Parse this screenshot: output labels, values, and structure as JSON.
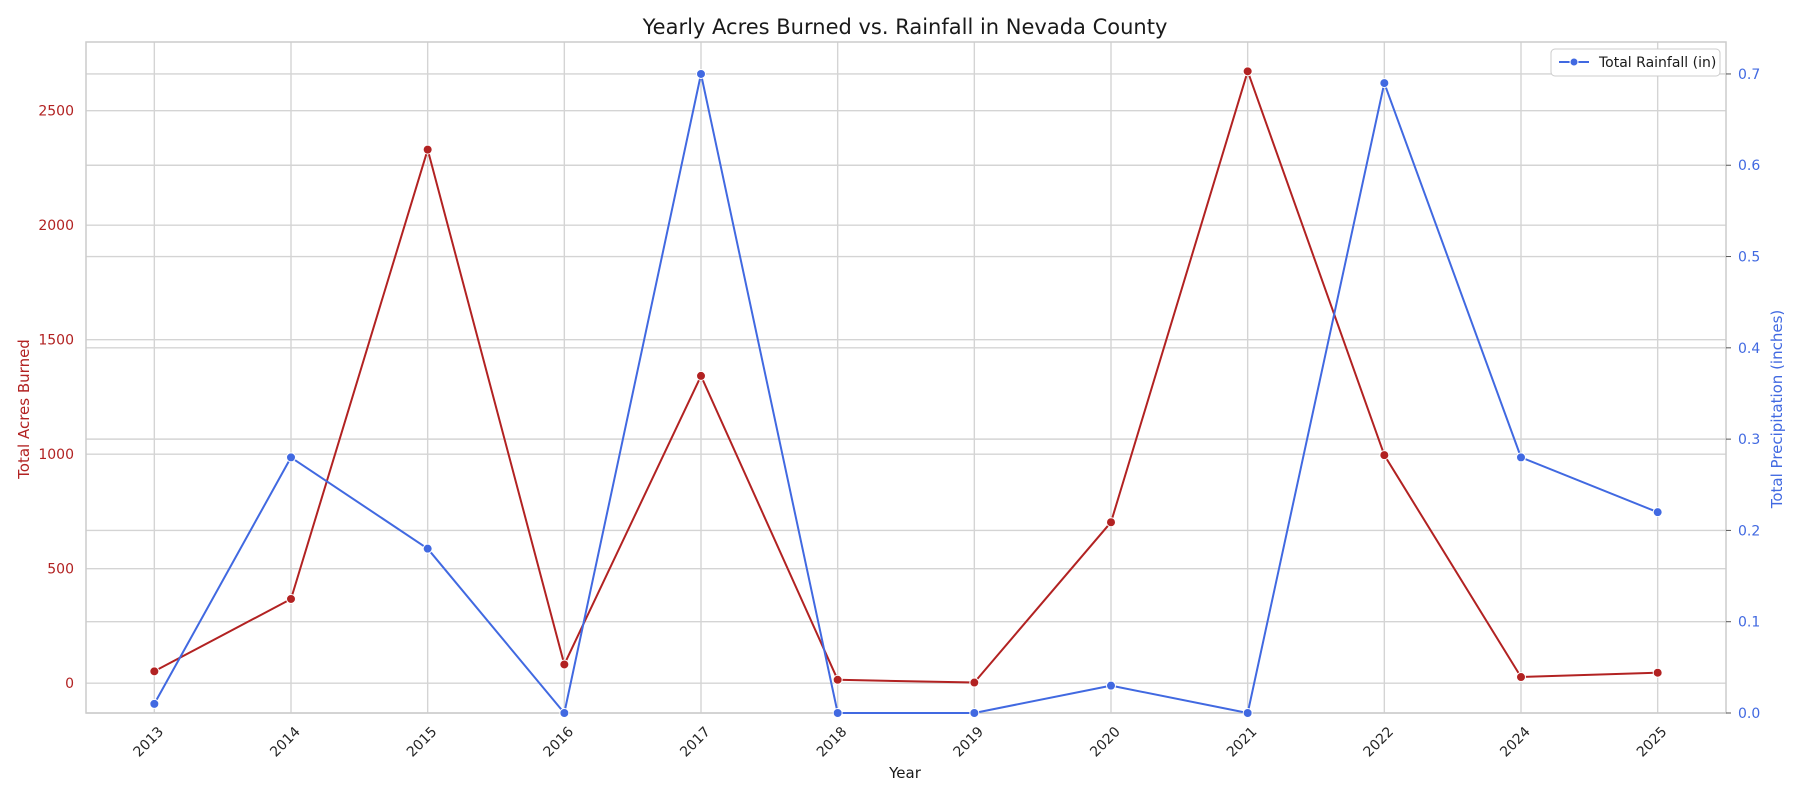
{
  "chart_data": {
    "type": "line",
    "title": "Yearly Acres Burned vs. Rainfall in Nevada County",
    "xlabel": "Year",
    "categories": [
      "2013",
      "2014",
      "2015",
      "2016",
      "2017",
      "2018",
      "2019",
      "2020",
      "2021",
      "2022",
      "2024",
      "2025"
    ],
    "left_axis": {
      "label": "Total Acres Burned",
      "color": "#b22222",
      "ylim": [
        -130,
        2800
      ],
      "ticks": [
        0,
        500,
        1000,
        1500,
        2000,
        2500
      ]
    },
    "right_axis": {
      "label": "Total Precipitation (inches)",
      "color": "#4169e1",
      "ylim": [
        0.0,
        0.735
      ],
      "ticks": [
        "0.0",
        "0.1",
        "0.2",
        "0.3",
        "0.4",
        "0.5",
        "0.6",
        "0.7"
      ]
    },
    "series": [
      {
        "axis": "left",
        "color": "#b22222",
        "values": [
          52,
          368,
          2330,
          82,
          1342,
          15,
          3,
          703,
          2672,
          996,
          27,
          46
        ]
      },
      {
        "name": "Total Rainfall (in)",
        "axis": "right",
        "color": "#4169e1",
        "values": [
          0.01,
          0.28,
          0.18,
          0.0,
          0.7,
          0.0,
          0.0,
          0.03,
          0.0,
          0.69,
          0.28,
          0.22
        ]
      }
    ],
    "grid": true,
    "legend_position": "top-right"
  }
}
